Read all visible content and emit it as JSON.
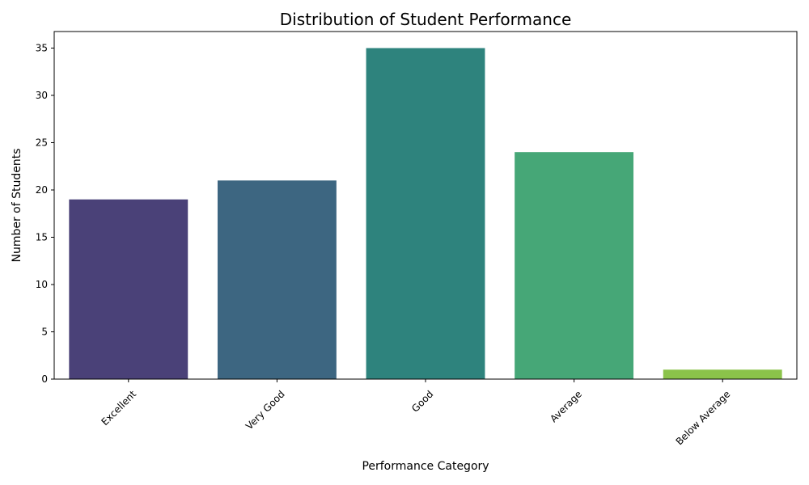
{
  "chart_data": {
    "type": "bar",
    "title": "Distribution of Student Performance",
    "xlabel": "Performance Category",
    "ylabel": "Number of Students",
    "categories": [
      "Excellent",
      "Very Good",
      "Good",
      "Average",
      "Below Average"
    ],
    "values": [
      19,
      21,
      35,
      24,
      1
    ],
    "colors": [
      "#4a4178",
      "#3d6681",
      "#2e837d",
      "#46a777",
      "#8bc34a"
    ],
    "ylim": [
      0,
      36.75
    ],
    "yticks": [
      0,
      5,
      10,
      15,
      20,
      25,
      30,
      35
    ],
    "grid": false,
    "legend": "none"
  }
}
